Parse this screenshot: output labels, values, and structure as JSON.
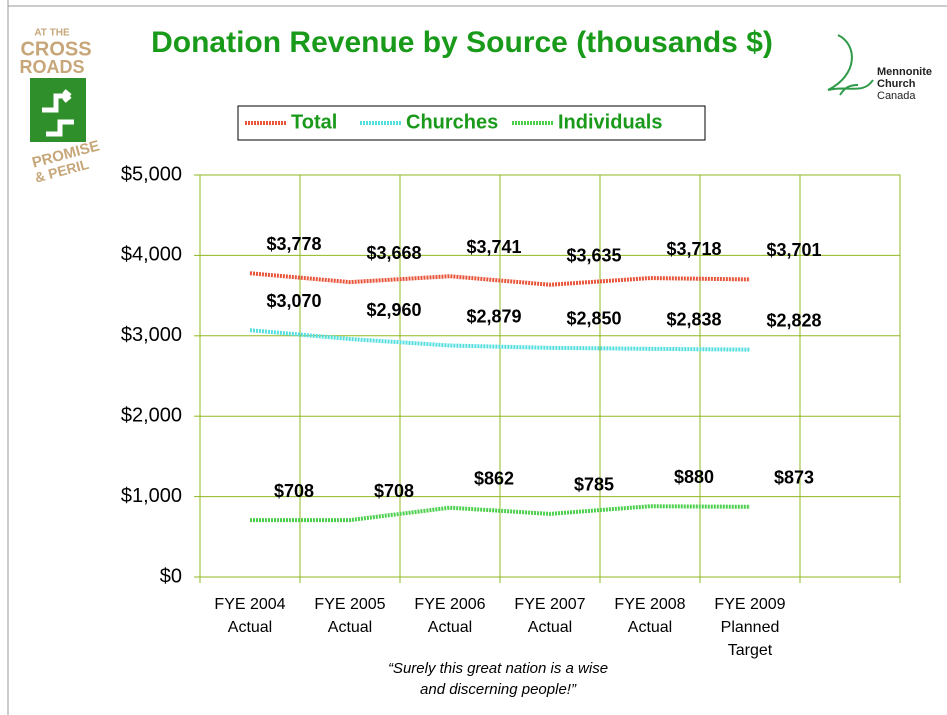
{
  "logos": {
    "left": [
      "AT THE",
      "CROSS",
      "ROADS",
      "PROMISE",
      "& PERIL"
    ],
    "right": [
      "Mennonite",
      "Church",
      "Canada"
    ]
  },
  "chart_data": {
    "type": "line",
    "title": "Donation Revenue by Source (thousands $)",
    "categories": [
      [
        "FYE 2004",
        "Actual"
      ],
      [
        "FYE 2005",
        "Actual"
      ],
      [
        "FYE 2006",
        "Actual"
      ],
      [
        "FYE 2007",
        "Actual"
      ],
      [
        "FYE 2008",
        "Actual"
      ],
      [
        "FYE 2009",
        "Planned",
        "Target"
      ]
    ],
    "series": [
      {
        "name": "Total",
        "color": "#e8553a",
        "values": [
          3778,
          3668,
          3741,
          3635,
          3718,
          3701
        ],
        "value_labels": [
          "$3,778",
          "$3,668",
          "$3,741",
          "$3,635",
          "$3,718",
          "$3,701"
        ]
      },
      {
        "name": "Churches",
        "color": "#55dede",
        "values": [
          3070,
          2960,
          2879,
          2850,
          2838,
          2828
        ],
        "value_labels": [
          "$3,070",
          "$2,960",
          "$2,879",
          "$2,850",
          "$2,838",
          "$2,828"
        ]
      },
      {
        "name": "Individuals",
        "color": "#4ccf4c",
        "values": [
          708,
          708,
          862,
          785,
          880,
          873
        ],
        "value_labels": [
          "$708",
          "$708",
          "$862",
          "$785",
          "$880",
          "$873"
        ]
      }
    ],
    "ylim": [
      0,
      5000
    ],
    "yticks": [
      {
        "value": 0,
        "label": "$0"
      },
      {
        "value": 1000,
        "label": "$1,000"
      },
      {
        "value": 2000,
        "label": "$2,000"
      },
      {
        "value": 3000,
        "label": "$3,000"
      },
      {
        "value": 4000,
        "label": "$4,000"
      },
      {
        "value": 5000,
        "label": "$5,000"
      }
    ],
    "grid": true,
    "legend": "top",
    "annotation": [
      "“Surely this great nation is a wise",
      "and discerning people!”"
    ]
  }
}
